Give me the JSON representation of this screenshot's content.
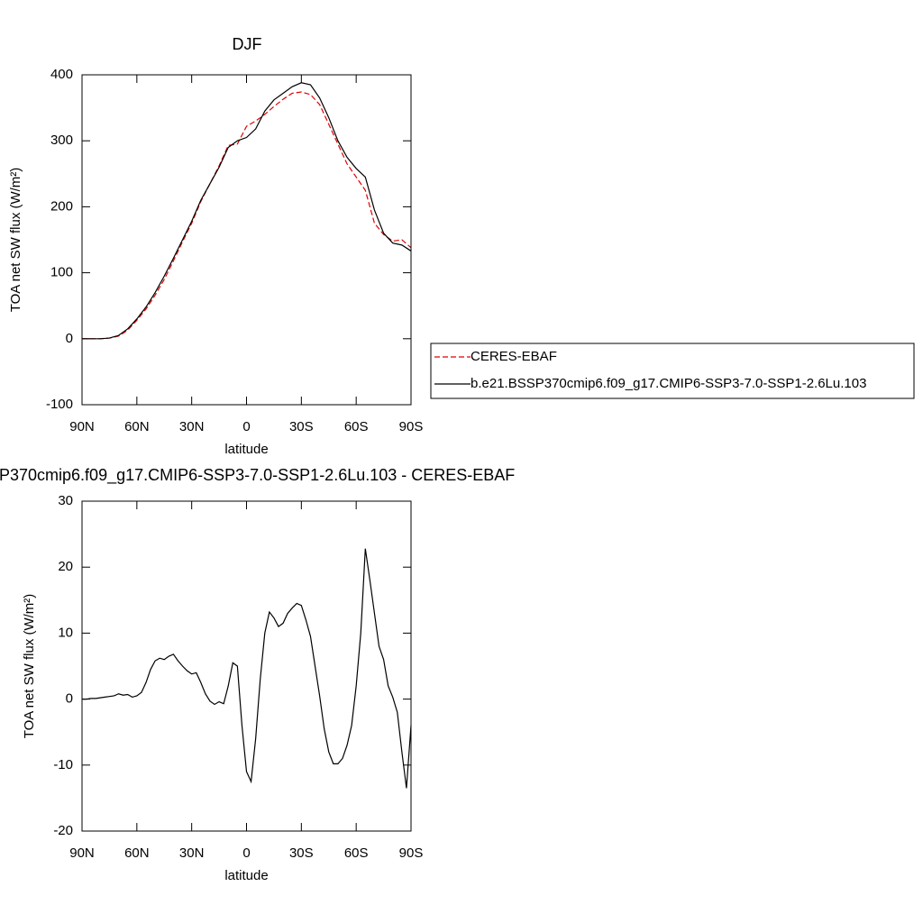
{
  "chart_data": [
    {
      "type": "line",
      "title": "DJF",
      "xlabel": "latitude",
      "ylabel": "TOA net SW flux (W/m²)",
      "x": [
        90,
        85,
        80,
        75,
        70,
        65,
        60,
        55,
        50,
        45,
        40,
        35,
        30,
        25,
        20,
        15,
        10,
        5,
        0,
        -5,
        -10,
        -15,
        -20,
        -25,
        -30,
        -35,
        -40,
        -45,
        -50,
        -55,
        -60,
        -65,
        -70,
        -75,
        -80,
        -85,
        -90
      ],
      "series": [
        {
          "name": "CERES-EBAF",
          "color": "#e00000",
          "linestyle": "dashed",
          "values": [
            0,
            0,
            0,
            1,
            4,
            13,
            28,
            45,
            66,
            90,
            118,
            147,
            175,
            208,
            235,
            262,
            293,
            295,
            322,
            330,
            340,
            352,
            363,
            372,
            374,
            370,
            355,
            325,
            295,
            265,
            245,
            225,
            175,
            158,
            148,
            150,
            138
          ]
        },
        {
          "name": "b.e21.BSSP370cmip6.f09_g17.CMIP6-SSP3-7.0-SSP1-2.6Lu.103",
          "color": "#000000",
          "linestyle": "solid",
          "values": [
            0,
            0,
            0,
            1,
            5,
            15,
            30,
            48,
            70,
            95,
            122,
            150,
            178,
            210,
            235,
            260,
            290,
            300,
            305,
            318,
            345,
            362,
            372,
            382,
            388,
            385,
            365,
            335,
            300,
            275,
            258,
            245,
            195,
            160,
            145,
            142,
            133
          ]
        }
      ],
      "xlim": [
        90,
        -90
      ],
      "xticks": [
        {
          "value": 90,
          "label": "90N"
        },
        {
          "value": 60,
          "label": "60N"
        },
        {
          "value": 30,
          "label": "30N"
        },
        0,
        {
          "value": -30,
          "label": "30S"
        },
        {
          "value": -60,
          "label": "60S"
        },
        {
          "value": -90,
          "label": "90S"
        }
      ],
      "ylim": [
        -100,
        400
      ],
      "yticks": [
        -100,
        0,
        100,
        200,
        300,
        400
      ],
      "legend": "right"
    },
    {
      "type": "line",
      "title": "P370cmip6.f09_g17.CMIP6-SSP3-7.0-SSP1-2.6Lu.103 - CERES-EBAF",
      "xlabel": "latitude",
      "ylabel": "TOA net SW flux (W/m²)",
      "x": [
        90,
        87.5,
        85,
        82.5,
        80,
        77.5,
        75,
        72.5,
        70,
        67.5,
        65,
        62.5,
        60,
        57.5,
        55,
        52.5,
        50,
        47.5,
        45,
        42.5,
        40,
        37.5,
        35,
        32.5,
        30,
        27.5,
        25,
        22.5,
        20,
        17.5,
        15,
        12.5,
        10,
        7.5,
        5,
        2.5,
        0,
        -2.5,
        -5,
        -7.5,
        -10,
        -12.5,
        -15,
        -17.5,
        -20,
        -22.5,
        -25,
        -27.5,
        -30,
        -32.5,
        -35,
        -37.5,
        -40,
        -42.5,
        -45,
        -47.5,
        -50,
        -52.5,
        -55,
        -57.5,
        -60,
        -62.5,
        -65,
        -67.5,
        -70,
        -72.5,
        -75,
        -77.5,
        -80,
        -82.5,
        -85,
        -87.5,
        -90
      ],
      "color": "#000000",
      "linestyle": "solid",
      "values": [
        0,
        0,
        0.1,
        0.1,
        0.2,
        0.3,
        0.4,
        0.5,
        0.8,
        0.6,
        0.7,
        0.3,
        0.5,
        1,
        2.5,
        4.5,
        5.8,
        6.2,
        6,
        6.5,
        6.8,
        5.8,
        5,
        4.3,
        3.8,
        4,
        2.5,
        0.8,
        -0.3,
        -0.8,
        -0.4,
        -0.7,
        2,
        5.5,
        5,
        -4,
        -11,
        -12.5,
        -6,
        3,
        10,
        13.2,
        12.3,
        11,
        11.5,
        13,
        13.8,
        14.5,
        14.2,
        12,
        9.5,
        5,
        0.5,
        -4.5,
        -8,
        -9.8,
        -9.8,
        -9,
        -7,
        -4,
        2,
        10,
        22.8,
        18,
        13,
        8,
        6,
        2,
        0.3,
        -2,
        -8,
        -13.5,
        -4
      ],
      "xlim": [
        90,
        -90
      ],
      "xticks": [
        {
          "value": 90,
          "label": "90N"
        },
        {
          "value": 60,
          "label": "60N"
        },
        {
          "value": 30,
          "label": "30N"
        },
        0,
        {
          "value": -30,
          "label": "30S"
        },
        {
          "value": -60,
          "label": "60S"
        },
        {
          "value": -90,
          "label": "90S"
        }
      ],
      "ylim": [
        -20,
        30
      ],
      "yticks": [
        -20,
        -10,
        0,
        10,
        20,
        30
      ]
    }
  ]
}
